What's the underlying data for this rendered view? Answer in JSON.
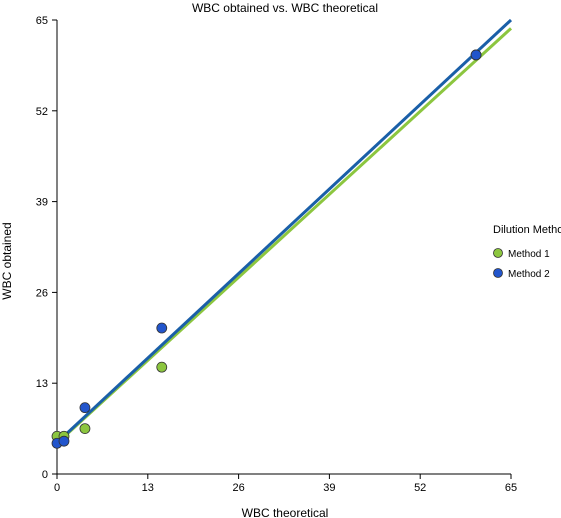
{
  "chart_data": {
    "type": "scatter",
    "title": "WBC obtained vs. WBC theoretical",
    "xlabel": "WBC theoretical",
    "ylabel": "WBC obtained",
    "xlim": [
      0,
      65
    ],
    "ylim": [
      0,
      65
    ],
    "xticks": [
      "0",
      "13",
      "26",
      "39",
      "52",
      "65"
    ],
    "yticks": [
      "0",
      "13",
      "26",
      "39",
      "52",
      "65"
    ],
    "grid": false,
    "legend": {
      "title": "Dilution Method",
      "placement": "right"
    },
    "series": [
      {
        "name": "Method 1",
        "color": "#8cc63f",
        "points": [
          [
            0,
            5.4
          ],
          [
            1,
            5.4
          ],
          [
            4,
            6.5
          ],
          [
            15,
            15.3
          ],
          [
            60,
            60
          ]
        ],
        "fit": {
          "x": [
            0,
            65
          ],
          "y": [
            4.4,
            63.8
          ]
        }
      },
      {
        "name": "Method 2",
        "color": "#1a5fa8",
        "marker_color": "#2255cc",
        "points": [
          [
            0,
            4.4
          ],
          [
            1,
            4.7
          ],
          [
            4,
            9.5
          ],
          [
            15,
            20.9
          ],
          [
            60,
            60
          ]
        ],
        "fit": {
          "x": [
            0,
            65
          ],
          "y": [
            4.5,
            65
          ]
        }
      }
    ]
  }
}
